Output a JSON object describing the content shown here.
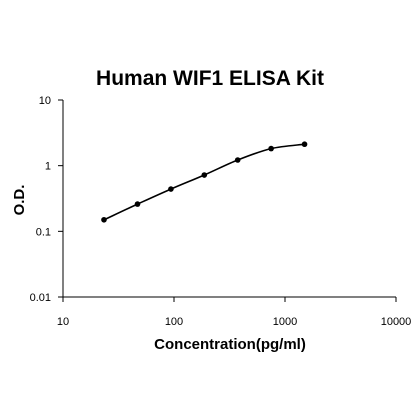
{
  "chart_data": {
    "type": "scatter",
    "title": "Human WIF1 ELISA Kit",
    "xlabel": "Concentration(pg/ml)",
    "ylabel": "O.D.",
    "x_scale": "log",
    "y_scale": "log",
    "xlim": [
      10,
      10000
    ],
    "ylim": [
      0.01,
      10
    ],
    "x_ticks": [
      "10",
      "100",
      "1000",
      "10000"
    ],
    "y_ticks": [
      "0.01",
      "0.1",
      "1",
      "10"
    ],
    "grid": false,
    "legend": "none",
    "series": [
      {
        "x": [
          23.4,
          46.9,
          93.8,
          187.5,
          375,
          750,
          1500
        ],
        "y": [
          0.15,
          0.26,
          0.44,
          0.72,
          1.22,
          1.82,
          2.12
        ],
        "marker_color": "#000000",
        "fit_line": true
      }
    ]
  }
}
